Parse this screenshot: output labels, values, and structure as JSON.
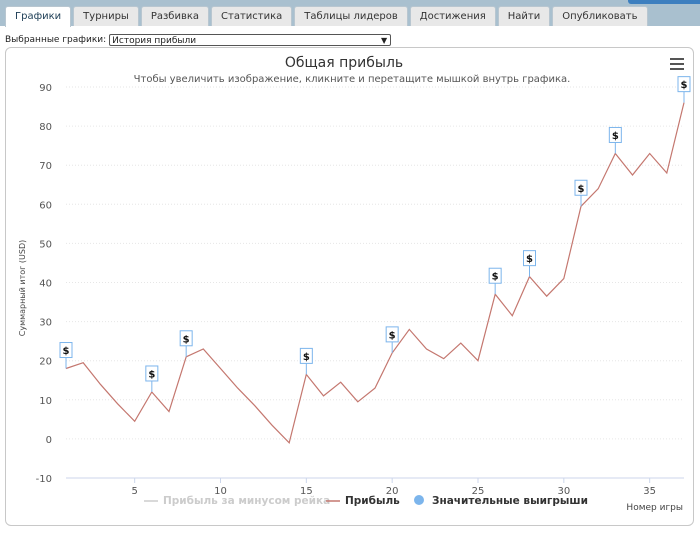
{
  "tabs": [
    {
      "label": "Графики",
      "active": true
    },
    {
      "label": "Турниры"
    },
    {
      "label": "Разбивка"
    },
    {
      "label": "Статистика"
    },
    {
      "label": "Таблицы лидеров"
    },
    {
      "label": "Достижения"
    },
    {
      "label": "Найти"
    },
    {
      "label": "Опубликовать"
    }
  ],
  "selector": {
    "label": "Выбранные графики:",
    "value": "История прибыли"
  },
  "chart_data": {
    "type": "line",
    "title": "Общая прибыль",
    "subtitle": "Чтобы увеличить изображение, кликните и перетащите мышкой внутрь графика.",
    "xlabel": "Номер игры",
    "ylabel": "Суммарный итог (USD)",
    "ylim": [
      -10,
      90
    ],
    "yticks": [
      -10,
      0,
      10,
      20,
      30,
      40,
      50,
      60,
      70,
      80,
      90
    ],
    "xticks": [
      5,
      10,
      15,
      20,
      25,
      30,
      35
    ],
    "xlim": [
      1,
      37
    ],
    "grid": true,
    "legend_placement": "bottom-center",
    "series": [
      {
        "name": "Прибыль за минусом рейка",
        "color": "#cccccc",
        "values": []
      },
      {
        "name": "Прибыль",
        "color": "#c4776f",
        "x": [
          1,
          2,
          3,
          4,
          5,
          6,
          7,
          8,
          9,
          10,
          11,
          12,
          13,
          14,
          15,
          16,
          17,
          18,
          19,
          20,
          21,
          22,
          23,
          24,
          25,
          26,
          27,
          28,
          29,
          30,
          31,
          32,
          33,
          34,
          35,
          36,
          37
        ],
        "values": [
          18,
          19.5,
          14,
          9,
          4.5,
          12,
          7,
          21,
          23,
          18,
          13,
          8.5,
          3.5,
          -1,
          16.5,
          11,
          14.5,
          9.5,
          13,
          22,
          28,
          23,
          20.5,
          24.5,
          20,
          37,
          31.5,
          41.5,
          36.5,
          41,
          59.5,
          64,
          73,
          67.5,
          73,
          68,
          86
        ]
      }
    ],
    "markers": {
      "name": "Значительные выигрыши",
      "color": "#7cb5ec",
      "symbol": "$",
      "points": [
        {
          "x": 1,
          "y": 18
        },
        {
          "x": 6,
          "y": 12
        },
        {
          "x": 8,
          "y": 21
        },
        {
          "x": 15,
          "y": 16.5
        },
        {
          "x": 20,
          "y": 22
        },
        {
          "x": 26,
          "y": 37
        },
        {
          "x": 28,
          "y": 41.5
        },
        {
          "x": 31,
          "y": 59.5
        },
        {
          "x": 33,
          "y": 73
        },
        {
          "x": 37,
          "y": 86
        }
      ]
    }
  }
}
